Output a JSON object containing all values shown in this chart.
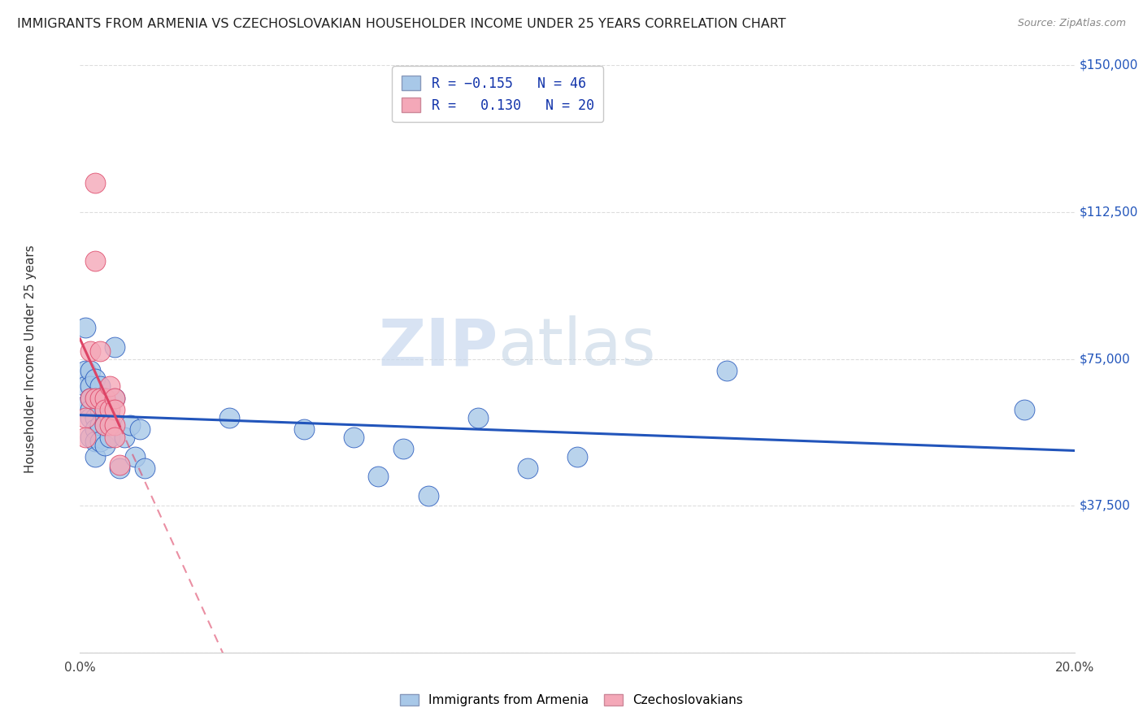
{
  "title": "IMMIGRANTS FROM ARMENIA VS CZECHOSLOVAKIAN HOUSEHOLDER INCOME UNDER 25 YEARS CORRELATION CHART",
  "source": "Source: ZipAtlas.com",
  "ylabel": "Householder Income Under 25 years",
  "xmin": 0.0,
  "xmax": 0.2,
  "ymin": 0,
  "ymax": 150000,
  "yticks": [
    0,
    37500,
    75000,
    112500,
    150000
  ],
  "ytick_labels": [
    "",
    "$37,500",
    "$75,000",
    "$112,500",
    "$150,000"
  ],
  "color_blue": "#a8c8e8",
  "color_pink": "#f4a8b8",
  "line_blue": "#2255bb",
  "line_pink": "#dd4466",
  "background": "#ffffff",
  "watermark_zip": "ZIP",
  "watermark_atlas": "atlas",
  "armenia_x": [
    0.001,
    0.001,
    0.001,
    0.001,
    0.002,
    0.002,
    0.002,
    0.002,
    0.002,
    0.002,
    0.003,
    0.003,
    0.003,
    0.003,
    0.003,
    0.003,
    0.004,
    0.004,
    0.004,
    0.004,
    0.004,
    0.005,
    0.005,
    0.005,
    0.005,
    0.006,
    0.006,
    0.007,
    0.007,
    0.008,
    0.009,
    0.01,
    0.011,
    0.012,
    0.013,
    0.03,
    0.045,
    0.055,
    0.06,
    0.065,
    0.07,
    0.08,
    0.09,
    0.1,
    0.13,
    0.19
  ],
  "armenia_y": [
    83000,
    72000,
    68000,
    63000,
    72000,
    68000,
    65000,
    62000,
    60000,
    55000,
    70000,
    65000,
    60000,
    57000,
    54000,
    50000,
    68000,
    65000,
    62000,
    58000,
    54000,
    65000,
    62000,
    58000,
    53000,
    60000,
    55000,
    78000,
    65000,
    47000,
    55000,
    58000,
    50000,
    57000,
    47000,
    60000,
    57000,
    55000,
    45000,
    52000,
    40000,
    60000,
    47000,
    50000,
    72000,
    62000
  ],
  "czech_x": [
    0.001,
    0.001,
    0.002,
    0.002,
    0.003,
    0.003,
    0.003,
    0.004,
    0.004,
    0.005,
    0.005,
    0.005,
    0.006,
    0.006,
    0.006,
    0.007,
    0.007,
    0.007,
    0.007,
    0.008
  ],
  "czech_y": [
    60000,
    55000,
    77000,
    65000,
    120000,
    100000,
    65000,
    77000,
    65000,
    65000,
    62000,
    58000,
    68000,
    62000,
    58000,
    65000,
    62000,
    58000,
    55000,
    48000
  ]
}
